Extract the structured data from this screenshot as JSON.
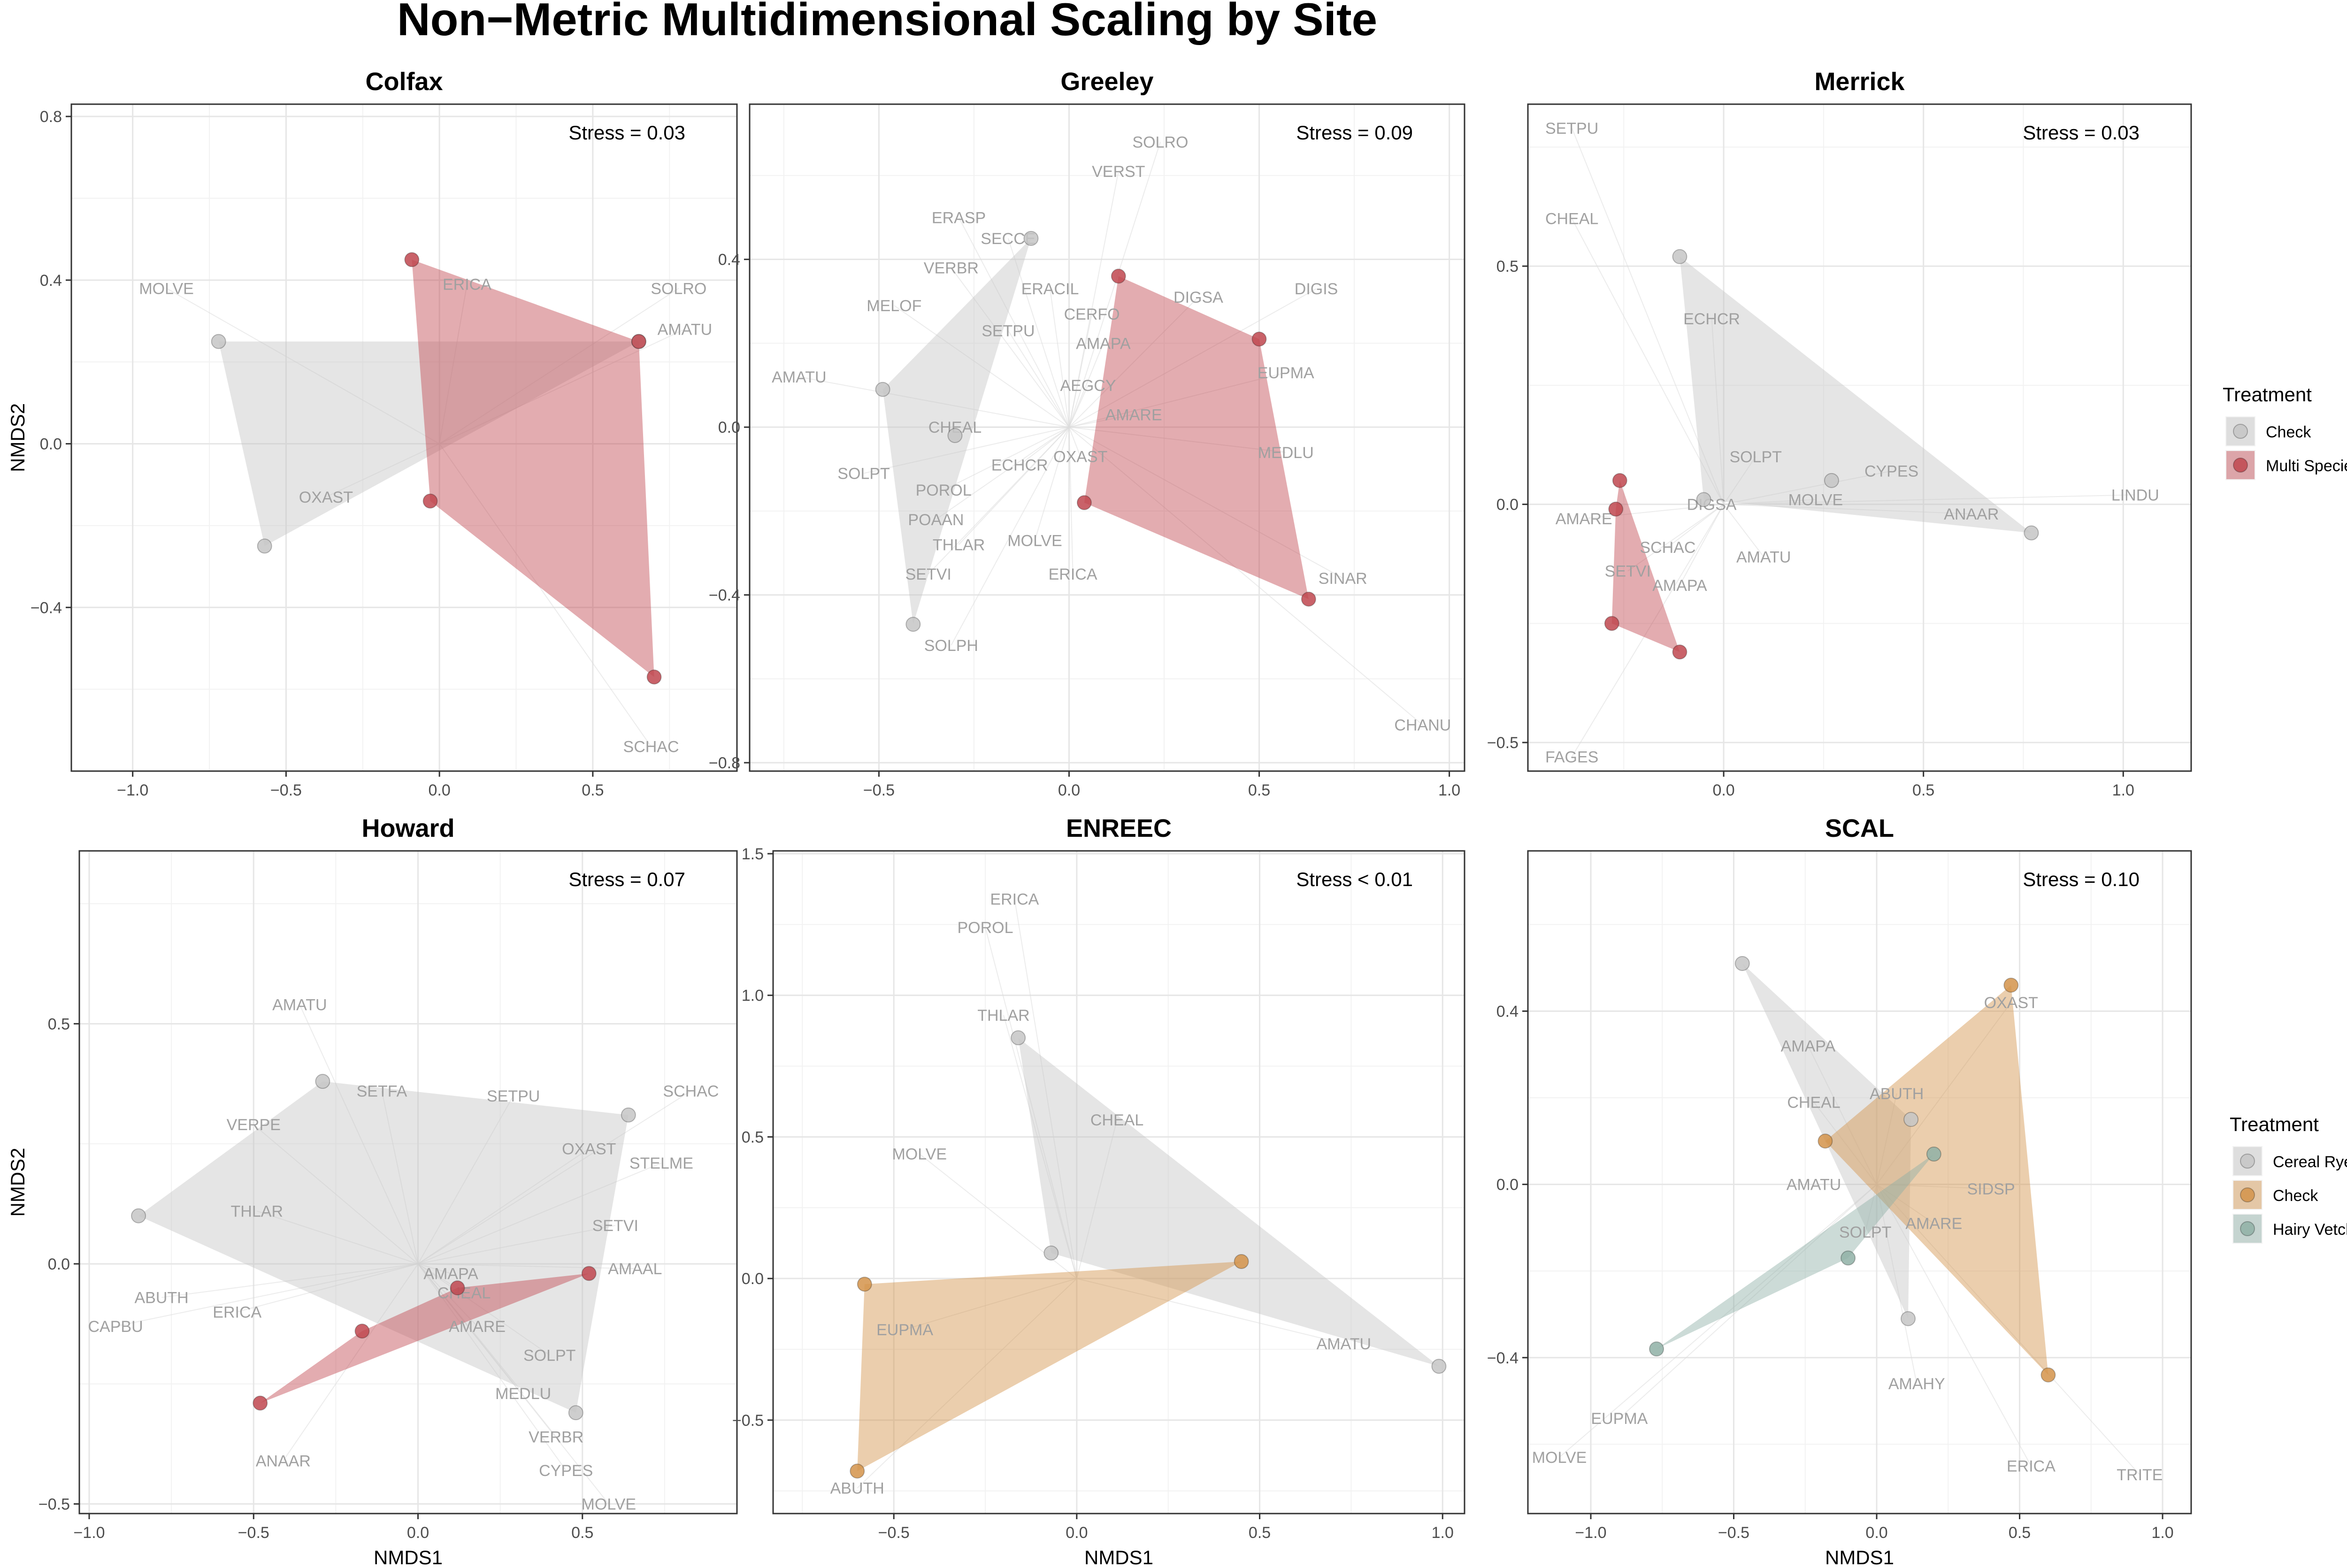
{
  "title": "Non−Metric Multidimensional Scaling by Site",
  "colors": {
    "Check": "#c6c6c6",
    "Multi Species": "#c0474f",
    "Cereal Rye": "#c6c6c6",
    "Check2": "#d3934a",
    "Hairy Vetch": "#8fb0a6"
  },
  "legends": [
    {
      "title": "Treatment",
      "placement": "right of top row",
      "entries": [
        {
          "label": "Check",
          "color": "#c6c6c6"
        },
        {
          "label": "Multi Species",
          "color": "#c0474f"
        }
      ]
    },
    {
      "title": "Treatment",
      "placement": "right of bottom row",
      "entries": [
        {
          "label": "Cereal Rye",
          "color": "#c6c6c6"
        },
        {
          "label": "Check",
          "color": "#d3934a"
        },
        {
          "label": "Hairy Vetch",
          "color": "#8fb0a6"
        }
      ]
    }
  ],
  "chart_data": [
    {
      "type": "scatter",
      "title": "Colfax",
      "stress": "Stress = 0.03",
      "xlabel": "",
      "ylabel": "NMDS2",
      "xlim": [
        -1.2,
        0.97
      ],
      "ylim": [
        -0.8,
        0.83
      ],
      "xticks": [
        -1.0,
        -0.5,
        0.0,
        0.5
      ],
      "yticks": [
        -0.4,
        0.0,
        0.4,
        0.8
      ],
      "groups": [
        {
          "name": "Check",
          "color": "#c6c6c6",
          "points": [
            [
              -0.72,
              0.25
            ],
            [
              -0.57,
              -0.25
            ],
            [
              0.65,
              0.25
            ]
          ]
        },
        {
          "name": "Multi Species",
          "color": "#c0474f",
          "points": [
            [
              -0.09,
              0.45
            ],
            [
              0.65,
              0.25
            ],
            [
              0.7,
              -0.57
            ],
            [
              -0.03,
              -0.14
            ]
          ]
        }
      ],
      "species": [
        {
          "label": "MOLVE",
          "x": -0.89,
          "y": 0.38
        },
        {
          "label": "ERICA",
          "x": 0.09,
          "y": 0.39
        },
        {
          "label": "SOLRO",
          "x": 0.78,
          "y": 0.38
        },
        {
          "label": "AMATU",
          "x": 0.8,
          "y": 0.28
        },
        {
          "label": "OXAST",
          "x": -0.37,
          "y": -0.13
        },
        {
          "label": "SCHAC",
          "x": 0.69,
          "y": -0.74
        }
      ]
    },
    {
      "type": "scatter",
      "title": "Greeley",
      "stress": "Stress = 0.09",
      "xlabel": "",
      "ylabel": "",
      "xlim": [
        -0.84,
        1.04
      ],
      "ylim": [
        -0.82,
        0.77
      ],
      "xticks": [
        -0.5,
        0.0,
        0.5,
        1.0
      ],
      "yticks": [
        -0.8,
        -0.4,
        0.0,
        0.4
      ],
      "groups": [
        {
          "name": "Check",
          "color": "#c6c6c6",
          "points": [
            [
              -0.1,
              0.45
            ],
            [
              -0.49,
              0.09
            ],
            [
              -0.3,
              -0.02
            ],
            [
              -0.41,
              -0.47
            ]
          ]
        },
        {
          "name": "Multi Species",
          "color": "#c0474f",
          "points": [
            [
              0.13,
              0.36
            ],
            [
              0.5,
              0.21
            ],
            [
              0.63,
              -0.41
            ],
            [
              0.04,
              -0.18
            ]
          ]
        }
      ],
      "species": [
        {
          "label": "SOLRO",
          "x": 0.24,
          "y": 0.68
        },
        {
          "label": "VERST",
          "x": 0.13,
          "y": 0.61
        },
        {
          "label": "ERASP",
          "x": -0.29,
          "y": 0.5
        },
        {
          "label": "SECCE",
          "x": -0.16,
          "y": 0.45
        },
        {
          "label": "VERBR",
          "x": -0.31,
          "y": 0.38
        },
        {
          "label": "ERACIL",
          "x": -0.05,
          "y": 0.33
        },
        {
          "label": "DIGSA",
          "x": 0.34,
          "y": 0.31
        },
        {
          "label": "DIGIS",
          "x": 0.65,
          "y": 0.33
        },
        {
          "label": "MELOF",
          "x": -0.46,
          "y": 0.29
        },
        {
          "label": "CERFO",
          "x": 0.06,
          "y": 0.27
        },
        {
          "label": "SETPU",
          "x": -0.16,
          "y": 0.23
        },
        {
          "label": "AMAPA",
          "x": 0.09,
          "y": 0.2
        },
        {
          "label": "EUPMA",
          "x": 0.57,
          "y": 0.13
        },
        {
          "label": "AMATU",
          "x": -0.71,
          "y": 0.12
        },
        {
          "label": "AEGCY",
          "x": 0.05,
          "y": 0.1
        },
        {
          "label": "CHEAL",
          "x": -0.3,
          "y": 0.0
        },
        {
          "label": "AMARE",
          "x": 0.17,
          "y": 0.03
        },
        {
          "label": "OXAST",
          "x": 0.03,
          "y": -0.07
        },
        {
          "label": "MEDLU",
          "x": 0.57,
          "y": -0.06
        },
        {
          "label": "ECHCR",
          "x": -0.13,
          "y": -0.09
        },
        {
          "label": "SOLPT",
          "x": -0.54,
          "y": -0.11
        },
        {
          "label": "POROL",
          "x": -0.33,
          "y": -0.15
        },
        {
          "label": "POAAN",
          "x": -0.35,
          "y": -0.22
        },
        {
          "label": "THLAR",
          "x": -0.29,
          "y": -0.28
        },
        {
          "label": "MOLVE",
          "x": -0.09,
          "y": -0.27
        },
        {
          "label": "SETVI",
          "x": -0.37,
          "y": -0.35
        },
        {
          "label": "ERICA",
          "x": 0.01,
          "y": -0.35
        },
        {
          "label": "SINAR",
          "x": 0.72,
          "y": -0.36
        },
        {
          "label": "SOLPH",
          "x": -0.31,
          "y": -0.52
        },
        {
          "label": "CHANU",
          "x": 0.93,
          "y": -0.71
        }
      ]
    },
    {
      "type": "scatter",
      "title": "Merrick",
      "stress": "Stress = 0.03",
      "xlabel": "",
      "ylabel": "",
      "xlim": [
        -0.49,
        1.17
      ],
      "ylim": [
        -0.56,
        0.84
      ],
      "xticks": [
        0.0,
        0.5,
        1.0
      ],
      "yticks": [
        -0.5,
        0.0,
        0.5
      ],
      "groups": [
        {
          "name": "Check",
          "color": "#c6c6c6",
          "points": [
            [
              -0.11,
              0.52
            ],
            [
              0.77,
              -0.06
            ],
            [
              -0.05,
              0.01
            ],
            [
              0.27,
              0.05
            ]
          ]
        },
        {
          "name": "Multi Species",
          "color": "#c0474f",
          "points": [
            [
              -0.26,
              0.05
            ],
            [
              -0.11,
              -0.31
            ],
            [
              -0.28,
              -0.25
            ],
            [
              -0.27,
              -0.01
            ]
          ]
        }
      ],
      "species": [
        {
          "label": "SETPU",
          "x": -0.38,
          "y": 0.79
        },
        {
          "label": "CHEAL",
          "x": -0.38,
          "y": 0.6
        },
        {
          "label": "ECHCR",
          "x": -0.03,
          "y": 0.39
        },
        {
          "label": "SOLPT",
          "x": 0.08,
          "y": 0.1
        },
        {
          "label": "CYPES",
          "x": 0.42,
          "y": 0.07
        },
        {
          "label": "LINDU",
          "x": 1.03,
          "y": 0.02
        },
        {
          "label": "DIGSA",
          "x": -0.03,
          "y": 0.0
        },
        {
          "label": "MOLVE",
          "x": 0.23,
          "y": 0.01
        },
        {
          "label": "ANAAR",
          "x": 0.62,
          "y": -0.02
        },
        {
          "label": "AMARE",
          "x": -0.35,
          "y": -0.03
        },
        {
          "label": "SCHAC",
          "x": -0.14,
          "y": -0.09
        },
        {
          "label": "AMATU",
          "x": 0.1,
          "y": -0.11
        },
        {
          "label": "SETVI",
          "x": -0.24,
          "y": -0.14
        },
        {
          "label": "AMAPA",
          "x": -0.11,
          "y": -0.17
        },
        {
          "label": "FAGES",
          "x": -0.38,
          "y": -0.53
        }
      ]
    },
    {
      "type": "scatter",
      "title": "Howard",
      "stress": "Stress = 0.07",
      "xlabel": "NMDS1",
      "ylabel": "NMDS2",
      "xlim": [
        -1.03,
        0.97
      ],
      "ylim": [
        -0.52,
        0.86
      ],
      "xticks": [
        -1.0,
        -0.5,
        0.0,
        0.5
      ],
      "yticks": [
        -0.5,
        0.0,
        0.5
      ],
      "groups": [
        {
          "name": "Check",
          "color": "#c6c6c6",
          "points": [
            [
              -0.29,
              0.38
            ],
            [
              0.64,
              0.31
            ],
            [
              0.48,
              -0.31
            ],
            [
              -0.85,
              0.1
            ]
          ]
        },
        {
          "name": "Multi Species",
          "color": "#c0474f",
          "points": [
            [
              0.52,
              -0.02
            ],
            [
              -0.48,
              -0.29
            ],
            [
              -0.17,
              -0.14
            ],
            [
              0.12,
              -0.05
            ]
          ]
        }
      ],
      "species": [
        {
          "label": "AMATU",
          "x": -0.36,
          "y": 0.54
        },
        {
          "label": "SETFA",
          "x": -0.11,
          "y": 0.36
        },
        {
          "label": "SETPU",
          "x": 0.29,
          "y": 0.35
        },
        {
          "label": "SCHAC",
          "x": 0.83,
          "y": 0.36
        },
        {
          "label": "VERPE",
          "x": -0.5,
          "y": 0.29
        },
        {
          "label": "OXAST",
          "x": 0.52,
          "y": 0.24
        },
        {
          "label": "STELME",
          "x": 0.74,
          "y": 0.21
        },
        {
          "label": "THLAR",
          "x": -0.49,
          "y": 0.11
        },
        {
          "label": "SETVI",
          "x": 0.6,
          "y": 0.08
        },
        {
          "label": "AMAPA",
          "x": 0.1,
          "y": -0.02
        },
        {
          "label": "AMAAL",
          "x": 0.66,
          "y": -0.01
        },
        {
          "label": "ABUTH",
          "x": -0.78,
          "y": -0.07
        },
        {
          "label": "CHEAL",
          "x": 0.14,
          "y": -0.06
        },
        {
          "label": "ERICA",
          "x": -0.55,
          "y": -0.1
        },
        {
          "label": "CAPBU",
          "x": -0.92,
          "y": -0.13
        },
        {
          "label": "AMARE",
          "x": 0.18,
          "y": -0.13
        },
        {
          "label": "SOLPT",
          "x": 0.4,
          "y": -0.19
        },
        {
          "label": "MEDLU",
          "x": 0.32,
          "y": -0.27
        },
        {
          "label": "VERBR",
          "x": 0.42,
          "y": -0.36
        },
        {
          "label": "ANAAR",
          "x": -0.41,
          "y": -0.41
        },
        {
          "label": "CYPES",
          "x": 0.45,
          "y": -0.43
        },
        {
          "label": "MOLVE",
          "x": 0.58,
          "y": -0.5
        }
      ]
    },
    {
      "type": "scatter",
      "title": "ENREEC",
      "stress": "Stress < 0.01",
      "xlabel": "NMDS1",
      "ylabel": "",
      "xlim": [
        -0.83,
        1.06
      ],
      "ylim": [
        -0.83,
        1.51
      ],
      "xticks": [
        -0.5,
        0.0,
        0.5,
        1.0
      ],
      "yticks": [
        -0.5,
        0.0,
        0.5,
        1.0,
        1.5
      ],
      "groups": [
        {
          "name": "Cereal Rye",
          "color": "#c6c6c6",
          "points": [
            [
              -0.16,
              0.85
            ],
            [
              0.99,
              -0.31
            ],
            [
              -0.07,
              0.09
            ]
          ]
        },
        {
          "name": "Check",
          "color": "#d3934a",
          "points": [
            [
              0.45,
              0.06
            ],
            [
              -0.58,
              -0.02
            ],
            [
              -0.6,
              -0.68
            ]
          ]
        }
      ],
      "species": [
        {
          "label": "ERICA",
          "x": -0.17,
          "y": 1.34
        },
        {
          "label": "POROL",
          "x": -0.25,
          "y": 1.24
        },
        {
          "label": "THLAR",
          "x": -0.2,
          "y": 0.93
        },
        {
          "label": "CHEAL",
          "x": 0.11,
          "y": 0.56
        },
        {
          "label": "MOLVE",
          "x": -0.43,
          "y": 0.44
        },
        {
          "label": "EUPMA",
          "x": -0.47,
          "y": -0.18
        },
        {
          "label": "AMATU",
          "x": 0.73,
          "y": -0.23
        },
        {
          "label": "ABUTH",
          "x": -0.6,
          "y": -0.74
        }
      ]
    },
    {
      "type": "scatter",
      "title": "SCAL",
      "stress": "Stress = 0.10",
      "xlabel": "NMDS1",
      "ylabel": "",
      "xlim": [
        -1.22,
        1.1
      ],
      "ylim": [
        -0.76,
        0.77
      ],
      "xticks": [
        -1.0,
        -0.5,
        0.0,
        0.5,
        1.0
      ],
      "yticks": [
        -0.4,
        0.0,
        0.4
      ],
      "groups": [
        {
          "name": "Cereal Rye",
          "color": "#c6c6c6",
          "points": [
            [
              -0.47,
              0.51
            ],
            [
              0.12,
              0.15
            ],
            [
              0.11,
              -0.31
            ]
          ]
        },
        {
          "name": "Check",
          "color": "#d3934a",
          "points": [
            [
              0.47,
              0.46
            ],
            [
              0.6,
              -0.44
            ],
            [
              -0.18,
              0.1
            ]
          ]
        },
        {
          "name": "Hairy Vetch",
          "color": "#8fb0a6",
          "points": [
            [
              0.2,
              0.07
            ],
            [
              -0.1,
              -0.17
            ],
            [
              -0.77,
              -0.38
            ]
          ]
        }
      ],
      "species": [
        {
          "label": "OXAST",
          "x": 0.47,
          "y": 0.42
        },
        {
          "label": "AMAPA",
          "x": -0.24,
          "y": 0.32
        },
        {
          "label": "ABUTH",
          "x": 0.07,
          "y": 0.21
        },
        {
          "label": "CHEAL",
          "x": -0.22,
          "y": 0.19
        },
        {
          "label": "AMATU",
          "x": -0.22,
          "y": 0.0
        },
        {
          "label": "SIDSP",
          "x": 0.4,
          "y": -0.01
        },
        {
          "label": "AMARE",
          "x": 0.2,
          "y": -0.09
        },
        {
          "label": "SOLPT",
          "x": -0.04,
          "y": -0.11
        },
        {
          "label": "AMAHY",
          "x": 0.14,
          "y": -0.46
        },
        {
          "label": "EUPMA",
          "x": -0.9,
          "y": -0.54
        },
        {
          "label": "MOLVE",
          "x": -1.11,
          "y": -0.63
        },
        {
          "label": "ERICA",
          "x": 0.54,
          "y": -0.65
        },
        {
          "label": "TRITE",
          "x": 0.92,
          "y": -0.67
        }
      ]
    }
  ]
}
